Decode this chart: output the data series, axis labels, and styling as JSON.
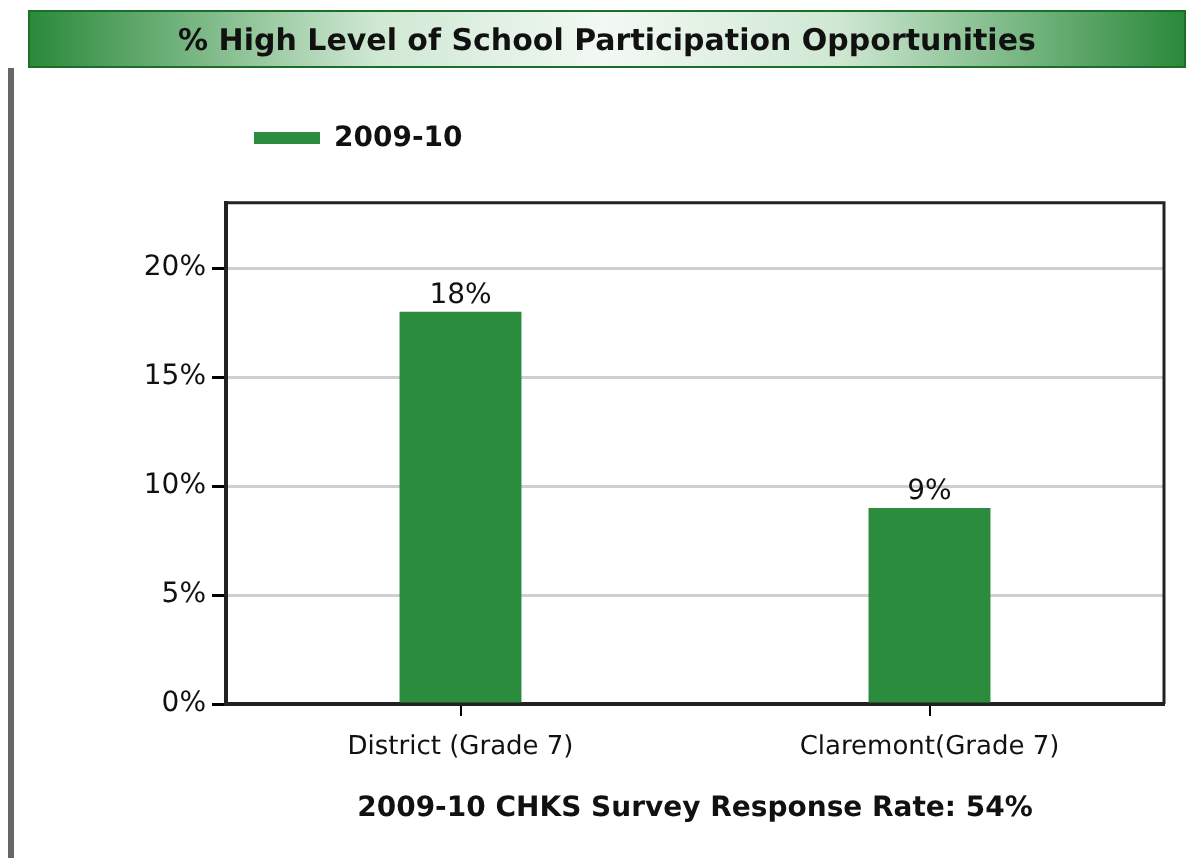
{
  "chart_data": {
    "type": "bar",
    "title": "% High Level of School Participation Opportunities",
    "xlabel": "2009-10 CHKS Survey Response Rate: 54%",
    "categories": [
      "District (Grade 7)",
      "Claremont(Grade 7)"
    ],
    "series": [
      {
        "name": "2009-10",
        "color": "#2a8c3c",
        "values": [
          18,
          9
        ],
        "value_labels": [
          "18%",
          "9%"
        ]
      }
    ],
    "ylim": [
      0,
      23
    ],
    "yticks": [
      {
        "value": 0,
        "label": "0%"
      },
      {
        "value": 5,
        "label": "5%"
      },
      {
        "value": 10,
        "label": "10%"
      },
      {
        "value": 15,
        "label": "15%"
      },
      {
        "value": 20,
        "label": "20%"
      }
    ],
    "grid": "y",
    "legend": "top left"
  }
}
